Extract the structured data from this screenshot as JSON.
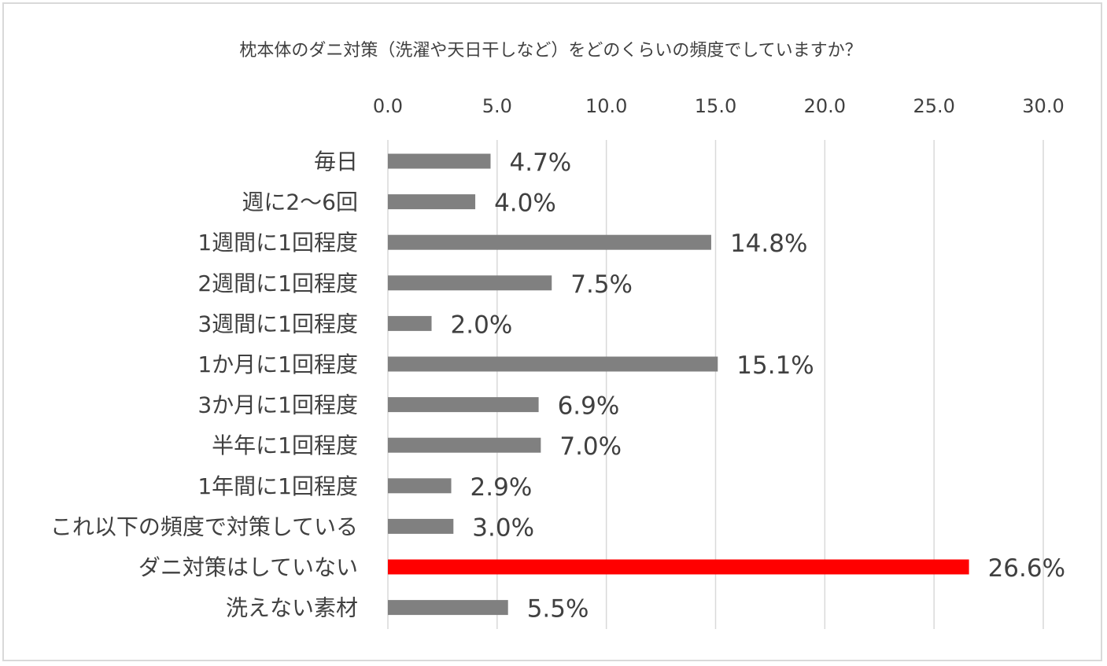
{
  "chart_data": {
    "type": "bar",
    "orientation": "horizontal",
    "title": "枕本体のダニ対策（洗濯や天日干しなど）をどのくらいの頻度でしていますか？",
    "xlim": [
      0,
      30
    ],
    "ticks": [
      "0.0",
      "5.0",
      "10.0",
      "15.0",
      "20.0",
      "25.0",
      "30.0"
    ],
    "tick_values": [
      0,
      5,
      10,
      15,
      20,
      25,
      30
    ],
    "axis_position": "top",
    "grid": true,
    "categories": [
      "毎日",
      "週に2～6回",
      "1週間に1回程度",
      "2週間に1回程度",
      "3週間に1回程度",
      "1か月に1回程度",
      "3か月に1回程度",
      "半年に1回程度",
      "1年間に1回程度",
      "これ以下の頻度で対策している",
      "ダニ対策はしていない",
      "洗えない素材"
    ],
    "values": [
      4.7,
      4.0,
      14.8,
      7.5,
      2.0,
      15.1,
      6.9,
      7.0,
      2.9,
      3.0,
      26.6,
      5.5
    ],
    "data_labels": [
      "4.7%",
      "4.0%",
      "14.8%",
      "7.5%",
      "2.0%",
      "15.1%",
      "6.9%",
      "7.0%",
      "2.9%",
      "3.0%",
      "26.6%",
      "5.5%"
    ],
    "colors": [
      "#808080",
      "#808080",
      "#808080",
      "#808080",
      "#808080",
      "#808080",
      "#808080",
      "#808080",
      "#808080",
      "#808080",
      "#ff0000",
      "#808080"
    ],
    "gridline_color": "#d9d9d9"
  }
}
